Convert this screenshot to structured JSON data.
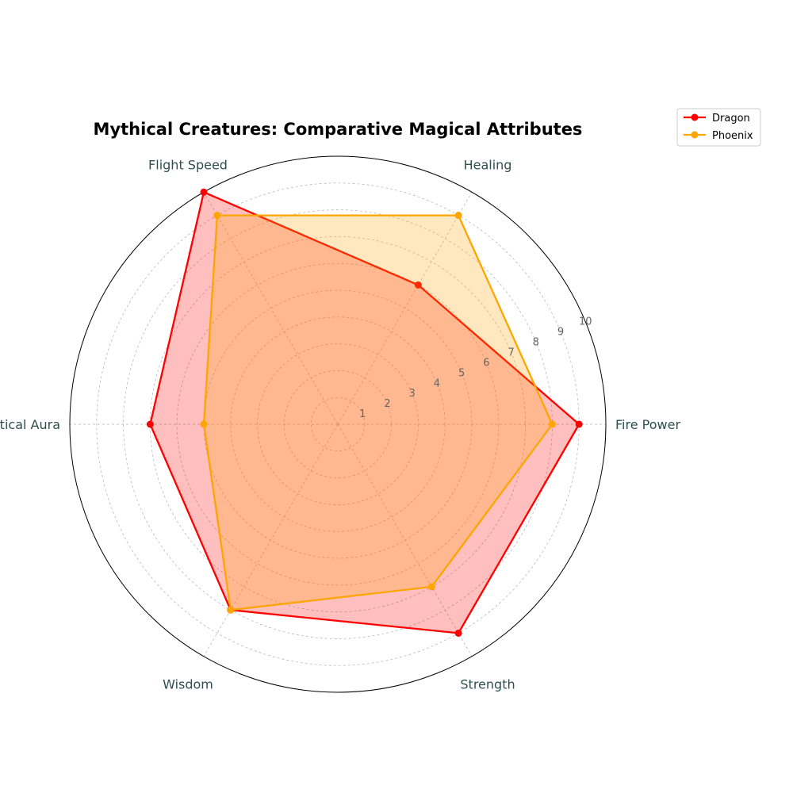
{
  "chart_data": {
    "type": "radar",
    "title": "Mythical Creatures: Comparative Magical Attributes",
    "categories": [
      "Fire Power",
      "Healing",
      "Flight Speed",
      "Mystical Aura",
      "Wisdom",
      "Strength"
    ],
    "rlim": [
      0,
      10
    ],
    "rticks": [
      1,
      2,
      3,
      4,
      5,
      6,
      7,
      8,
      9,
      10
    ],
    "grid": true,
    "legend_position": "top-right",
    "series": [
      {
        "name": "Dragon",
        "values": [
          9,
          6,
          10,
          7,
          8,
          9
        ],
        "color": "#ff0000",
        "fill": "#ff0000"
      },
      {
        "name": "Phoenix",
        "values": [
          8,
          9,
          9,
          5,
          8,
          7
        ],
        "color": "#ffa500",
        "fill": "#ffa500"
      }
    ]
  }
}
